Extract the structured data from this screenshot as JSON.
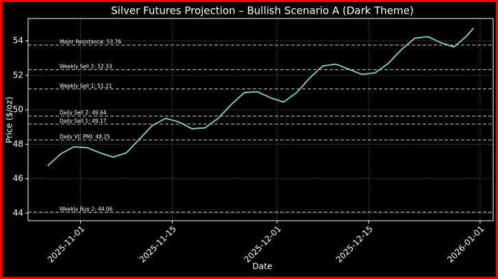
{
  "chart_data": {
    "type": "line",
    "title": "Silver Futures Projection – Bullish Scenario A (Dark Theme)",
    "xlabel": "Date",
    "ylabel": "Price ($/oz)",
    "x": [
      "2025-10-27",
      "2025-10-29",
      "2025-10-31",
      "2025-11-02",
      "2025-11-04",
      "2025-11-06",
      "2025-11-08",
      "2025-11-10",
      "2025-11-12",
      "2025-11-14",
      "2025-11-16",
      "2025-11-18",
      "2025-11-20",
      "2025-11-22",
      "2025-11-24",
      "2025-11-26",
      "2025-11-28",
      "2025-11-30",
      "2025-12-02",
      "2025-12-04",
      "2025-12-06",
      "2025-12-08",
      "2025-12-10",
      "2025-12-12",
      "2025-12-14",
      "2025-12-16",
      "2025-12-18",
      "2025-12-20",
      "2025-12-22",
      "2025-12-24",
      "2025-12-26",
      "2025-12-28",
      "2025-12-30",
      "2025-12-31"
    ],
    "series": [
      {
        "name": "Price",
        "color": "#8dd3c7",
        "values": [
          46.75,
          47.45,
          47.85,
          47.8,
          47.5,
          47.25,
          47.5,
          48.3,
          49.1,
          49.5,
          49.3,
          48.9,
          48.95,
          49.5,
          50.3,
          51.0,
          51.05,
          50.7,
          50.45,
          51.0,
          51.85,
          52.55,
          52.65,
          52.35,
          52.05,
          52.15,
          52.7,
          53.5,
          54.15,
          54.25,
          53.9,
          53.65,
          54.3,
          54.75
        ]
      }
    ],
    "levels": [
      {
        "label": "Major Resistance: 53.76",
        "value": 53.76
      },
      {
        "label": "Weekly Sell 2: 52.33",
        "value": 52.33
      },
      {
        "label": "Weekly Sell 1: 51.21",
        "value": 51.21
      },
      {
        "label": "Daily Sell 2: 49.64",
        "value": 49.64
      },
      {
        "label": "Daily Sell 1: 49.17",
        "value": 49.17
      },
      {
        "label": "Daily VC PMI: 48.25",
        "value": 48.25
      },
      {
        "label": "Weekly Buy 2: 44.06",
        "value": 44.06
      }
    ],
    "level_color": "#cccccc",
    "xlim": [
      "2025-10-24",
      "2026-01-03"
    ],
    "xticks": [
      "2025-11-01",
      "2025-11-15",
      "2025-12-01",
      "2025-12-15",
      "2026-01-01"
    ],
    "ylim": [
      43.56,
      55.3
    ],
    "yticks": [
      44,
      46,
      48,
      50,
      52,
      54
    ],
    "grid": true
  }
}
